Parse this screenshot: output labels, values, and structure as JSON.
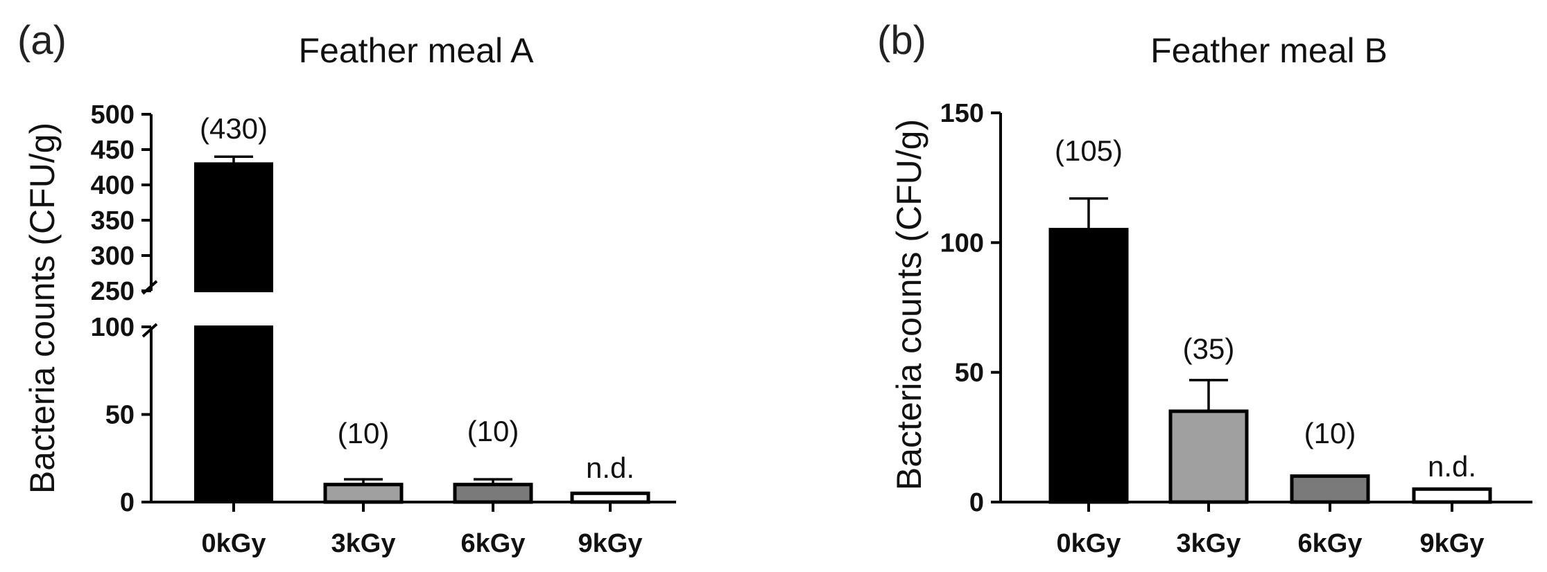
{
  "charts": [
    {
      "panel_label": "(a)",
      "chart_data": {
        "type": "bar",
        "title": "Feather meal  A",
        "ylabel": "Bacteria counts (CFU/g)",
        "xlabel": "",
        "categories": [
          "0kGy",
          "3kGy",
          "6kGy",
          "9kGy"
        ],
        "values": [
          430,
          10,
          10,
          5
        ],
        "errors": [
          10,
          3,
          3,
          0
        ],
        "data_labels": [
          "(430)",
          "(10)",
          "(10)",
          "n.d."
        ],
        "bar_colors": [
          "#000000",
          "#a0a0a0",
          "#7a7a7a",
          "#ffffff"
        ],
        "broken_axis": true,
        "ylim_lower": [
          0,
          100
        ],
        "ylim_upper": [
          250,
          500
        ],
        "yticks_lower": [
          "0",
          "50",
          "100"
        ],
        "yticks_upper": [
          "250",
          "300",
          "350",
          "400",
          "450",
          "500"
        ],
        "grid": false
      }
    },
    {
      "panel_label": "(b)",
      "chart_data": {
        "type": "bar",
        "title": "Feather meal  B",
        "ylabel": "Bacteria counts (CFU/g)",
        "xlabel": "",
        "categories": [
          "0kGy",
          "3kGy",
          "6kGy",
          "9kGy"
        ],
        "values": [
          105,
          35,
          10,
          5
        ],
        "errors": [
          12,
          12,
          0,
          0
        ],
        "data_labels": [
          "(105)",
          "(35)",
          "(10)",
          "n.d."
        ],
        "bar_colors": [
          "#000000",
          "#a0a0a0",
          "#7a7a7a",
          "#ffffff"
        ],
        "broken_axis": false,
        "ylim": [
          0,
          150
        ],
        "yticks": [
          "0",
          "50",
          "100",
          "150"
        ],
        "grid": false
      }
    }
  ]
}
